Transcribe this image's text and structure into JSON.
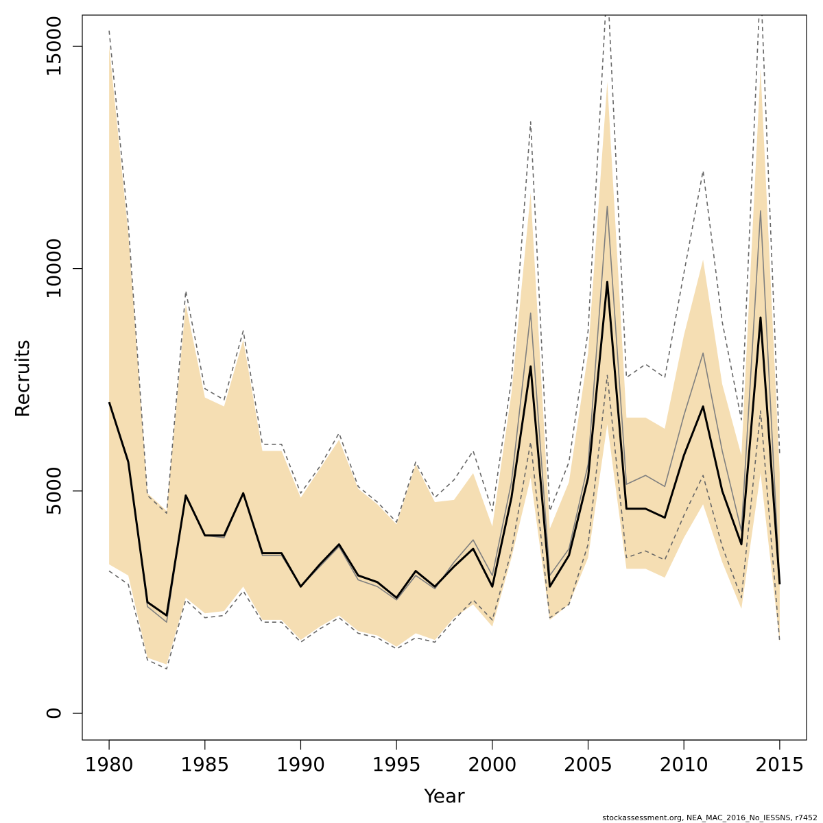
{
  "chart_data": {
    "type": "line",
    "xlabel": "Year",
    "ylabel": "Recruits",
    "xlim": [
      1978.6,
      2016.4
    ],
    "ylim": [
      -600,
      15700
    ],
    "x_ticks": [
      1980,
      1985,
      1990,
      1995,
      2000,
      2005,
      2010,
      2015
    ],
    "x_tick_labels": [
      "1980",
      "1985",
      "1990",
      "1995",
      "2000",
      "2005",
      "2010",
      "2015"
    ],
    "y_ticks": [
      0,
      5000,
      10000,
      15000
    ],
    "y_tick_labels": [
      "0",
      "5000",
      "10000",
      "15000"
    ],
    "grid": false,
    "footer": "stockassessment.org, NEA_MAC_2016_No_IESSNS, r7452",
    "x": [
      1980,
      1981,
      1982,
      1983,
      1984,
      1985,
      1986,
      1987,
      1988,
      1989,
      1990,
      1991,
      1992,
      1993,
      1994,
      1995,
      1996,
      1997,
      1998,
      1999,
      2000,
      2001,
      2002,
      2003,
      2004,
      2005,
      2006,
      2007,
      2008,
      2009,
      2010,
      2011,
      2012,
      2013,
      2014,
      2015
    ],
    "band": {
      "color": "#f5deb3",
      "upper": [
        15000,
        10800,
        4950,
        4550,
        9200,
        7100,
        6900,
        8400,
        5900,
        5900,
        4850,
        5500,
        6150,
        5050,
        4700,
        4250,
        5600,
        4750,
        4800,
        5400,
        4200,
        7200,
        11700,
        4150,
        5200,
        8100,
        14200,
        6650,
        6650,
        6400,
        8500,
        10200,
        7400,
        5800,
        14500,
        5400
      ],
      "lower": [
        3350,
        3100,
        1250,
        1100,
        2600,
        2250,
        2300,
        2850,
        2100,
        2100,
        1650,
        1950,
        2200,
        1850,
        1750,
        1500,
        1800,
        1650,
        2150,
        2450,
        1950,
        3500,
        5300,
        2100,
        2450,
        3500,
        6500,
        3250,
        3250,
        3050,
        3950,
        4700,
        3400,
        2350,
        5400,
        1600
      ]
    },
    "series": [
      {
        "role": "upper-dashed",
        "color": "#666666",
        "style": "dashed",
        "values": [
          15350,
          11000,
          4900,
          4500,
          9500,
          7300,
          7050,
          8600,
          6050,
          6050,
          4950,
          5550,
          6300,
          5100,
          4750,
          4300,
          5650,
          4850,
          5250,
          5900,
          4550,
          7500,
          13300,
          4550,
          5650,
          8600,
          16500,
          7550,
          7850,
          7550,
          9900,
          12200,
          8800,
          6600,
          16500,
          5800
        ]
      },
      {
        "role": "lower-dashed",
        "color": "#666666",
        "style": "dashed",
        "values": [
          3200,
          2900,
          1200,
          1000,
          2550,
          2150,
          2200,
          2750,
          2050,
          2050,
          1600,
          1900,
          2150,
          1800,
          1700,
          1450,
          1700,
          1600,
          2100,
          2550,
          2100,
          3650,
          6100,
          2150,
          2450,
          3800,
          7600,
          3500,
          3650,
          3450,
          4450,
          5350,
          3750,
          2600,
          6800,
          1600
        ]
      },
      {
        "role": "grey-estimate",
        "color": "#7f7f7f",
        "style": "solid",
        "values": [
          7000,
          5700,
          2400,
          2050,
          4900,
          4000,
          3950,
          4950,
          3550,
          3550,
          2850,
          3300,
          3750,
          3000,
          2850,
          2550,
          3100,
          2800,
          3400,
          3900,
          3100,
          5200,
          9000,
          3100,
          3700,
          5600,
          11400,
          5150,
          5350,
          5100,
          6700,
          8100,
          5900,
          4100,
          11300,
          2900
        ]
      },
      {
        "role": "black-estimate",
        "color": "#000000",
        "style": "solid",
        "values": [
          7000,
          5650,
          2500,
          2200,
          4900,
          4000,
          4000,
          4950,
          3600,
          3600,
          2850,
          3350,
          3800,
          3100,
          2950,
          2600,
          3200,
          2850,
          3300,
          3700,
          2850,
          4850,
          7800,
          2850,
          3550,
          5300,
          9700,
          4600,
          4600,
          4400,
          5800,
          6900,
          5000,
          3800,
          8900,
          2900
        ]
      }
    ]
  }
}
